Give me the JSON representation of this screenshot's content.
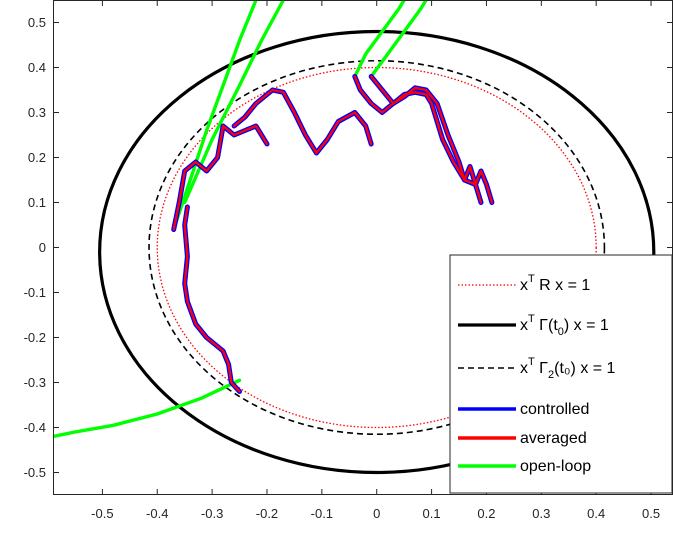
{
  "chart_data": {
    "type": "line",
    "title": "",
    "xlabel": "",
    "ylabel": "",
    "xlim": [
      -0.59,
      0.54
    ],
    "ylim": [
      -0.55,
      0.55
    ],
    "x_ticks": [
      "-0.5",
      "-0.4",
      "-0.3",
      "-0.2",
      "-0.1",
      "0",
      "0.1",
      "0.2",
      "0.3",
      "0.4",
      "0.5"
    ],
    "y_ticks": [
      "0.5",
      "0.4",
      "0.3",
      "0.2",
      "0.1",
      "0",
      "-0.1",
      "-0.2",
      "-0.3",
      "-0.4",
      "-0.5"
    ],
    "grid": false,
    "legend_position": "bottom-right",
    "legend": [
      {
        "base": "x",
        "sup": "T",
        "mid": " R x = 1",
        "sub": "",
        "tail": "",
        "color": "#ff0000",
        "style": "dotted"
      },
      {
        "base": "x",
        "sup": "T",
        "mid": " Γ(t",
        "sub": "0",
        "tail": ") x = 1",
        "color": "#000000",
        "style": "solid-thick"
      },
      {
        "base": "x",
        "sup": "T",
        "mid": " Γ",
        "sub": "2",
        "tail": "(t₀) x = 1",
        "color": "#000000",
        "style": "dashed"
      },
      {
        "base": "controlled",
        "sup": "",
        "mid": "",
        "sub": "",
        "tail": "",
        "color": "#0000ff",
        "style": "solid"
      },
      {
        "base": "averaged",
        "sup": "",
        "mid": "",
        "sub": "",
        "tail": "",
        "color": "#ff0000",
        "style": "solid"
      },
      {
        "base": "open-loop",
        "sup": "",
        "mid": "",
        "sub": "",
        "tail": "",
        "color": "#00ff00",
        "style": "solid"
      }
    ],
    "ellipses": [
      {
        "name": "R",
        "cx": 0.0,
        "cy": 0.0,
        "rx": 0.4,
        "ry": 0.4,
        "color": "#ff0000",
        "style": "dotted"
      },
      {
        "name": "Gamma",
        "cx": 0.0,
        "cy": -0.01,
        "rx": 0.505,
        "ry": 0.49,
        "color": "#000000",
        "style": "solid-thick"
      },
      {
        "name": "Gamma2",
        "cx": 0.0,
        "cy": 0.0,
        "rx": 0.415,
        "ry": 0.415,
        "color": "#000000",
        "style": "dashed"
      }
    ],
    "series": [
      {
        "name": "controlled",
        "color": "#0000ff",
        "segments": [
          [
            [
              -0.37,
              0.04
            ],
            [
              -0.36,
              0.1
            ],
            [
              -0.35,
              0.17
            ],
            [
              -0.33,
              0.19
            ],
            [
              -0.31,
              0.17
            ],
            [
              -0.29,
              0.2
            ],
            [
              -0.28,
              0.27
            ],
            [
              -0.26,
              0.25
            ],
            [
              -0.24,
              0.26
            ],
            [
              -0.22,
              0.27
            ],
            [
              -0.2,
              0.23
            ]
          ],
          [
            [
              -0.26,
              0.27
            ],
            [
              -0.24,
              0.29
            ],
            [
              -0.22,
              0.32
            ],
            [
              -0.19,
              0.35
            ],
            [
              -0.17,
              0.345
            ],
            [
              -0.15,
              0.3
            ],
            [
              -0.13,
              0.25
            ],
            [
              -0.11,
              0.21
            ],
            [
              -0.09,
              0.24
            ],
            [
              -0.07,
              0.28
            ],
            [
              -0.04,
              0.3
            ],
            [
              -0.02,
              0.27
            ],
            [
              -0.01,
              0.23
            ]
          ],
          [
            [
              -0.04,
              0.38
            ],
            [
              -0.03,
              0.35
            ],
            [
              -0.01,
              0.32
            ],
            [
              0.01,
              0.3
            ],
            [
              0.03,
              0.32
            ],
            [
              0.05,
              0.34
            ],
            [
              0.07,
              0.345
            ],
            [
              0.09,
              0.34
            ],
            [
              0.1,
              0.32
            ],
            [
              0.11,
              0.28
            ],
            [
              0.12,
              0.24
            ],
            [
              0.14,
              0.19
            ],
            [
              0.16,
              0.15
            ],
            [
              0.17,
              0.18
            ],
            [
              0.18,
              0.14
            ],
            [
              0.19,
              0.1
            ]
          ],
          [
            [
              -0.01,
              0.38
            ],
            [
              0.01,
              0.35
            ],
            [
              0.03,
              0.32
            ],
            [
              0.05,
              0.335
            ],
            [
              0.07,
              0.355
            ],
            [
              0.09,
              0.35
            ],
            [
              0.11,
              0.32
            ],
            [
              0.13,
              0.25
            ],
            [
              0.15,
              0.19
            ],
            [
              0.16,
              0.15
            ],
            [
              0.18,
              0.14
            ],
            [
              0.19,
              0.17
            ],
            [
              0.2,
              0.14
            ],
            [
              0.21,
              0.1
            ]
          ],
          [
            [
              -0.345,
              0.09
            ],
            [
              -0.35,
              0.05
            ],
            [
              -0.345,
              -0.02
            ],
            [
              -0.35,
              -0.08
            ],
            [
              -0.345,
              -0.12
            ],
            [
              -0.33,
              -0.17
            ],
            [
              -0.31,
              -0.2
            ],
            [
              -0.28,
              -0.23
            ],
            [
              -0.27,
              -0.26
            ],
            [
              -0.265,
              -0.3
            ],
            [
              -0.25,
              -0.32
            ]
          ]
        ]
      },
      {
        "name": "averaged",
        "color": "#ff0000",
        "segments": [
          [
            [
              -0.37,
              0.04
            ],
            [
              -0.36,
              0.1
            ],
            [
              -0.35,
              0.17
            ],
            [
              -0.33,
              0.19
            ],
            [
              -0.31,
              0.17
            ],
            [
              -0.29,
              0.2
            ],
            [
              -0.28,
              0.27
            ],
            [
              -0.26,
              0.25
            ],
            [
              -0.24,
              0.26
            ],
            [
              -0.22,
              0.27
            ],
            [
              -0.2,
              0.23
            ]
          ],
          [
            [
              -0.26,
              0.27
            ],
            [
              -0.24,
              0.29
            ],
            [
              -0.22,
              0.32
            ],
            [
              -0.19,
              0.35
            ],
            [
              -0.17,
              0.345
            ],
            [
              -0.15,
              0.3
            ],
            [
              -0.13,
              0.25
            ],
            [
              -0.11,
              0.21
            ],
            [
              -0.09,
              0.24
            ],
            [
              -0.07,
              0.28
            ],
            [
              -0.04,
              0.3
            ],
            [
              -0.02,
              0.27
            ],
            [
              -0.01,
              0.23
            ]
          ],
          [
            [
              -0.04,
              0.38
            ],
            [
              -0.03,
              0.35
            ],
            [
              -0.01,
              0.32
            ],
            [
              0.01,
              0.3
            ],
            [
              0.03,
              0.32
            ],
            [
              0.05,
              0.34
            ],
            [
              0.07,
              0.345
            ],
            [
              0.09,
              0.34
            ],
            [
              0.1,
              0.32
            ],
            [
              0.11,
              0.28
            ],
            [
              0.12,
              0.24
            ],
            [
              0.14,
              0.19
            ],
            [
              0.16,
              0.15
            ],
            [
              0.17,
              0.18
            ],
            [
              0.18,
              0.14
            ],
            [
              0.19,
              0.1
            ]
          ],
          [
            [
              -0.01,
              0.38
            ],
            [
              0.01,
              0.35
            ],
            [
              0.03,
              0.32
            ],
            [
              0.05,
              0.335
            ],
            [
              0.07,
              0.355
            ],
            [
              0.09,
              0.35
            ],
            [
              0.11,
              0.32
            ],
            [
              0.13,
              0.25
            ],
            [
              0.15,
              0.19
            ],
            [
              0.16,
              0.15
            ],
            [
              0.18,
              0.14
            ],
            [
              0.19,
              0.17
            ],
            [
              0.2,
              0.14
            ],
            [
              0.21,
              0.1
            ]
          ],
          [
            [
              -0.345,
              0.09
            ],
            [
              -0.35,
              0.05
            ],
            [
              -0.345,
              -0.02
            ],
            [
              -0.35,
              -0.08
            ],
            [
              -0.345,
              -0.12
            ],
            [
              -0.33,
              -0.17
            ],
            [
              -0.31,
              -0.2
            ],
            [
              -0.28,
              -0.23
            ],
            [
              -0.27,
              -0.26
            ],
            [
              -0.265,
              -0.3
            ],
            [
              -0.25,
              -0.32
            ]
          ]
        ]
      },
      {
        "name": "open-loop",
        "color": "#00ff00",
        "segments": [
          [
            [
              -0.37,
              0.04
            ],
            [
              -0.34,
              0.15
            ],
            [
              -0.31,
              0.26
            ],
            [
              -0.28,
              0.36
            ],
            [
              -0.25,
              0.46
            ],
            [
              -0.22,
              0.55
            ]
          ],
          [
            [
              -0.35,
              0.1
            ],
            [
              -0.3,
              0.24
            ],
            [
              -0.25,
              0.36
            ],
            [
              -0.21,
              0.46
            ],
            [
              -0.17,
              0.55
            ]
          ],
          [
            [
              -0.04,
              0.38
            ],
            [
              -0.02,
              0.43
            ],
            [
              0.01,
              0.48
            ],
            [
              0.04,
              0.53
            ],
            [
              0.05,
              0.55
            ]
          ],
          [
            [
              -0.01,
              0.38
            ],
            [
              0.02,
              0.43
            ],
            [
              0.05,
              0.48
            ],
            [
              0.08,
              0.53
            ],
            [
              0.09,
              0.55
            ]
          ],
          [
            [
              -0.25,
              -0.295
            ],
            [
              -0.32,
              -0.335
            ],
            [
              -0.4,
              -0.37
            ],
            [
              -0.48,
              -0.395
            ],
            [
              -0.55,
              -0.41
            ],
            [
              -0.59,
              -0.42
            ]
          ]
        ]
      }
    ]
  }
}
